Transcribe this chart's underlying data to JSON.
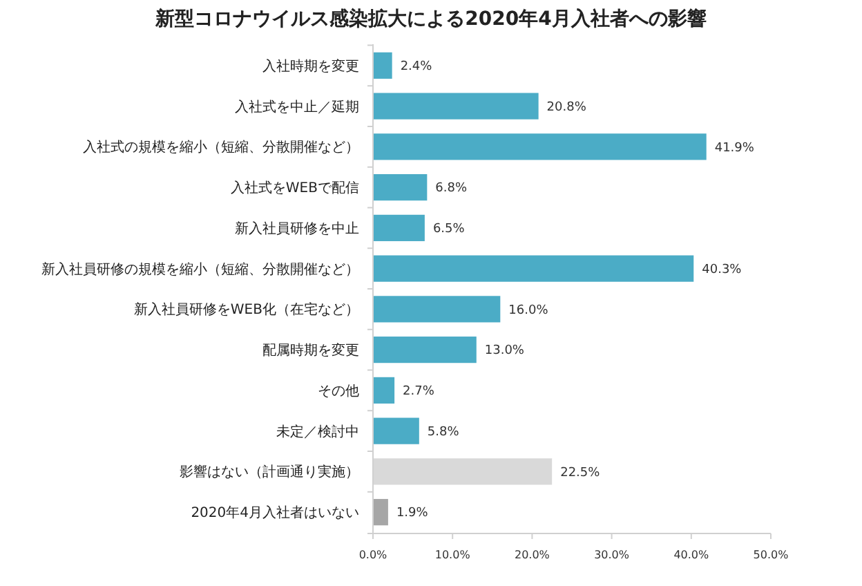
{
  "chart_data": {
    "type": "bar",
    "orientation": "horizontal",
    "title": "新型コロナウイルス感染拡大による2020年4月入社者への影響",
    "categories": [
      "入社時期を変更",
      "入社式を中止／延期",
      "入社式の規模を縮小（短縮、分散開催など）",
      "入社式をWEBで配信",
      "新入社員研修を中止",
      "新入社員研修の規模を縮小（短縮、分散開催など）",
      "新入社員研修をWEB化（在宅など）",
      "配属時期を変更",
      "その他",
      "未定／検討中",
      "影響はない（計画通り実施）",
      "2020年4月入社者はいない"
    ],
    "values": [
      2.4,
      20.8,
      41.9,
      6.8,
      6.5,
      40.3,
      16.0,
      13.0,
      2.7,
      5.8,
      22.5,
      1.9
    ],
    "value_labels": [
      "2.4%",
      "20.8%",
      "41.9%",
      "6.8%",
      "6.5%",
      "40.3%",
      "16.0%",
      "13.0%",
      "2.7%",
      "5.8%",
      "22.5%",
      "1.9%"
    ],
    "colors": [
      "#4bacc6",
      "#4bacc6",
      "#4bacc6",
      "#4bacc6",
      "#4bacc6",
      "#4bacc6",
      "#4bacc6",
      "#4bacc6",
      "#4bacc6",
      "#4bacc6",
      "#d9d9d9",
      "#a6a6a6"
    ],
    "xlim": [
      0,
      50
    ],
    "xticks": [
      {
        "value": 0,
        "label": "0.0%"
      },
      {
        "value": 10,
        "label": "10.0%"
      },
      {
        "value": 20,
        "label": "20.0%"
      },
      {
        "value": 30,
        "label": "30.0%"
      },
      {
        "value": 40,
        "label": "40.0%"
      },
      {
        "value": 50,
        "label": "50.0%"
      }
    ],
    "grid": false
  }
}
